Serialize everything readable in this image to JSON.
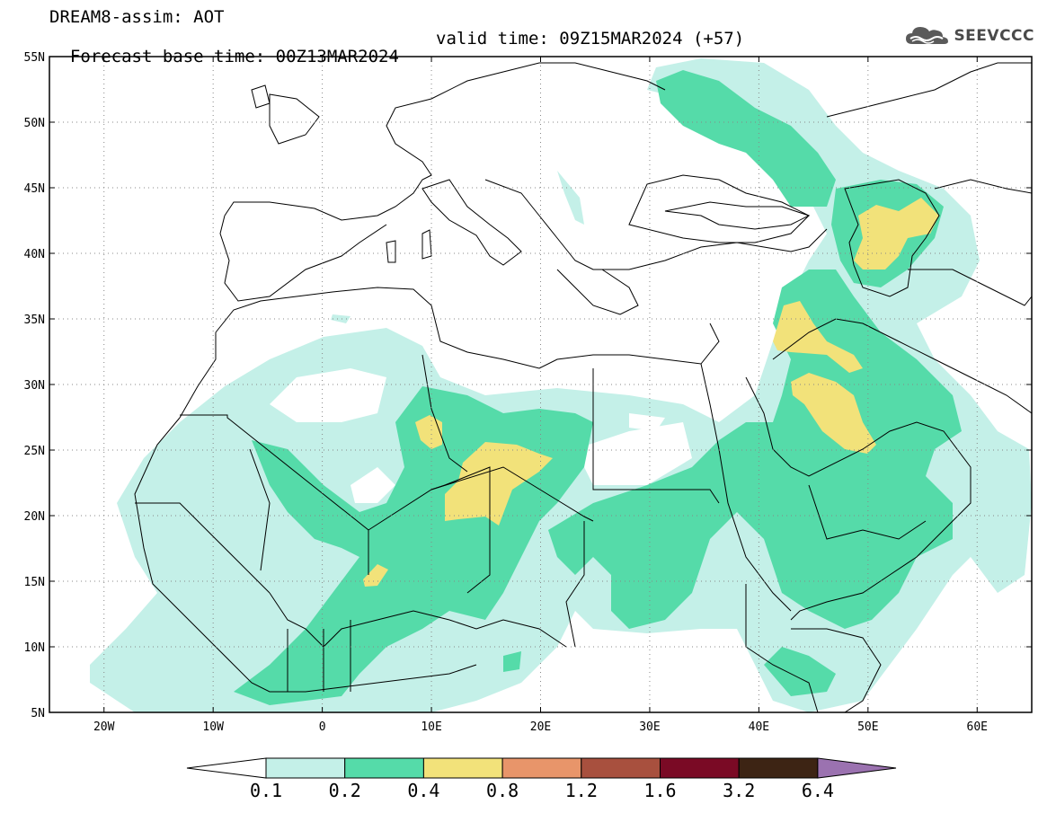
{
  "header": {
    "title": "DREAM8-assim: AOT",
    "base_time": "Forecast base time: 00Z13MAR2024",
    "valid_time": "valid time: 09Z15MAR2024 (+57)",
    "logo_text": "SEEVCCC",
    "logo_icon": "cloud-icon"
  },
  "map": {
    "lon_range": [
      -25,
      65
    ],
    "lat_range": [
      5,
      55
    ],
    "lon_ticks": [
      {
        "value": -20,
        "label": "20W"
      },
      {
        "value": -10,
        "label": "10W"
      },
      {
        "value": 0,
        "label": "0"
      },
      {
        "value": 10,
        "label": "10E"
      },
      {
        "value": 20,
        "label": "20E"
      },
      {
        "value": 30,
        "label": "30E"
      },
      {
        "value": 40,
        "label": "40E"
      },
      {
        "value": 50,
        "label": "50E"
      },
      {
        "value": 60,
        "label": "60E"
      }
    ],
    "lat_ticks": [
      {
        "value": 5,
        "label": "5N"
      },
      {
        "value": 10,
        "label": "10N"
      },
      {
        "value": 15,
        "label": "15N"
      },
      {
        "value": 20,
        "label": "20N"
      },
      {
        "value": 25,
        "label": "25N"
      },
      {
        "value": 30,
        "label": "30N"
      },
      {
        "value": 35,
        "label": "35N"
      },
      {
        "value": 40,
        "label": "40N"
      },
      {
        "value": 45,
        "label": "45N"
      },
      {
        "value": 50,
        "label": "50N"
      },
      {
        "value": 55,
        "label": "55N"
      }
    ],
    "grid": "dotted"
  },
  "legend": {
    "bins": [
      {
        "color": "#c4f0e8",
        "from": "0.1",
        "to": "0.2"
      },
      {
        "color": "#55dba9",
        "from": "0.2",
        "to": "0.4"
      },
      {
        "color": "#f2e27a",
        "from": "0.4",
        "to": "0.8"
      },
      {
        "color": "#e8956a",
        "from": "0.8",
        "to": "1.2"
      },
      {
        "color": "#a8503e",
        "from": "1.2",
        "to": "1.6"
      },
      {
        "color": "#7a0a25",
        "from": "1.6",
        "to": "3.2"
      },
      {
        "color": "#3d2414",
        "from": "3.2",
        "to": "6.4"
      }
    ],
    "under_color": "#ffffff",
    "over_color": "#9b72b0",
    "labels": [
      "0.1",
      "0.2",
      "0.4",
      "0.8",
      "1.2",
      "1.6",
      "3.2",
      "6.4"
    ]
  }
}
